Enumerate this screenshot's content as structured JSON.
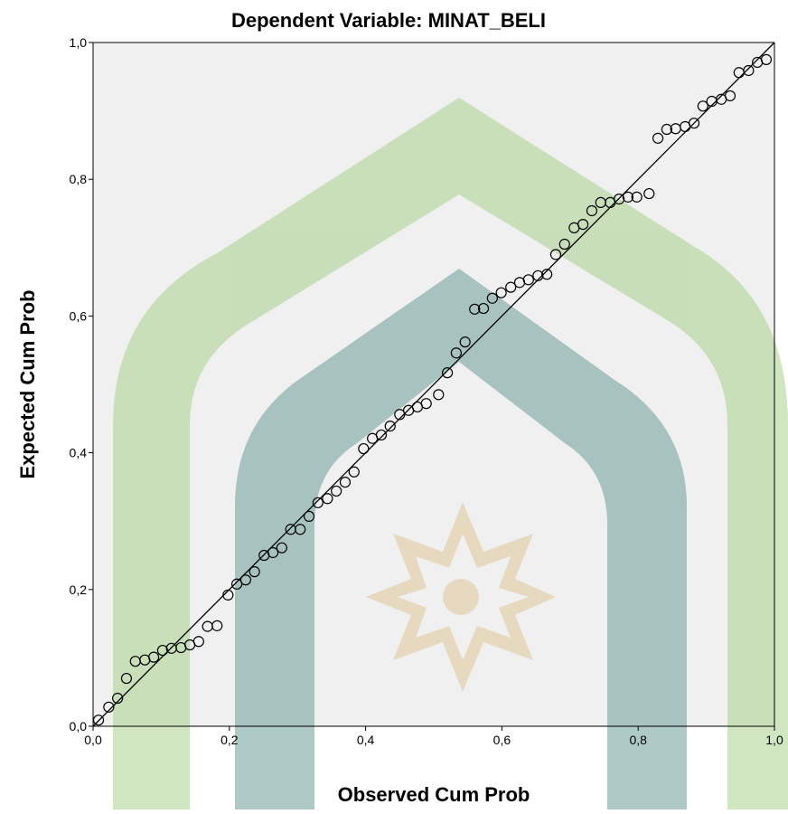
{
  "chart_data": {
    "type": "scatter",
    "title": "Dependent Variable: MINAT_BELI",
    "x_label": "Observed Cum Prob",
    "y_label": "Expected Cum Prob",
    "xlim": [
      0,
      1
    ],
    "ylim": [
      0,
      1
    ],
    "xticks": [
      {
        "value": 0,
        "label": "0,0"
      },
      {
        "value": 0.2,
        "label": "0,2"
      },
      {
        "value": 0.4,
        "label": "0,4"
      },
      {
        "value": 0.6,
        "label": "0,6"
      },
      {
        "value": 0.8,
        "label": "0,8"
      },
      {
        "value": 1,
        "label": "1,0"
      }
    ],
    "yticks": [
      {
        "value": 0,
        "label": "0,0"
      },
      {
        "value": 0.2,
        "label": "0,2"
      },
      {
        "value": 0.4,
        "label": "0,4"
      },
      {
        "value": 0.6,
        "label": "0,6"
      },
      {
        "value": 0.8,
        "label": "0,8"
      },
      {
        "value": 1,
        "label": "1,0"
      }
    ],
    "x": [
      0.008,
      0.023,
      0.036,
      0.049,
      0.062,
      0.076,
      0.089,
      0.102,
      0.115,
      0.129,
      0.142,
      0.155,
      0.168,
      0.182,
      0.198,
      0.211,
      0.224,
      0.237,
      0.251,
      0.264,
      0.277,
      0.29,
      0.304,
      0.317,
      0.33,
      0.344,
      0.357,
      0.37,
      0.383,
      0.397,
      0.41,
      0.423,
      0.436,
      0.45,
      0.463,
      0.476,
      0.489,
      0.507,
      0.52,
      0.533,
      0.546,
      0.56,
      0.573,
      0.586,
      0.599,
      0.613,
      0.626,
      0.639,
      0.653,
      0.666,
      0.679,
      0.692,
      0.706,
      0.719,
      0.732,
      0.745,
      0.759,
      0.772,
      0.785,
      0.798,
      0.816,
      0.829,
      0.842,
      0.855,
      0.869,
      0.882,
      0.895,
      0.908,
      0.922,
      0.935,
      0.948,
      0.962,
      0.975,
      0.988
    ],
    "values": [
      0.009,
      0.028,
      0.041,
      0.07,
      0.095,
      0.097,
      0.101,
      0.111,
      0.114,
      0.115,
      0.119,
      0.124,
      0.146,
      0.147,
      0.192,
      0.208,
      0.214,
      0.226,
      0.25,
      0.254,
      0.261,
      0.288,
      0.288,
      0.307,
      0.327,
      0.333,
      0.344,
      0.357,
      0.372,
      0.406,
      0.421,
      0.426,
      0.439,
      0.456,
      0.462,
      0.467,
      0.472,
      0.485,
      0.517,
      0.546,
      0.562,
      0.61,
      0.611,
      0.626,
      0.634,
      0.642,
      0.649,
      0.653,
      0.659,
      0.661,
      0.69,
      0.705,
      0.729,
      0.734,
      0.754,
      0.766,
      0.766,
      0.771,
      0.774,
      0.774,
      0.779,
      0.86,
      0.873,
      0.874,
      0.877,
      0.882,
      0.907,
      0.914,
      0.917,
      0.922,
      0.956,
      0.959,
      0.971,
      0.975
    ],
    "color": "#000000"
  }
}
